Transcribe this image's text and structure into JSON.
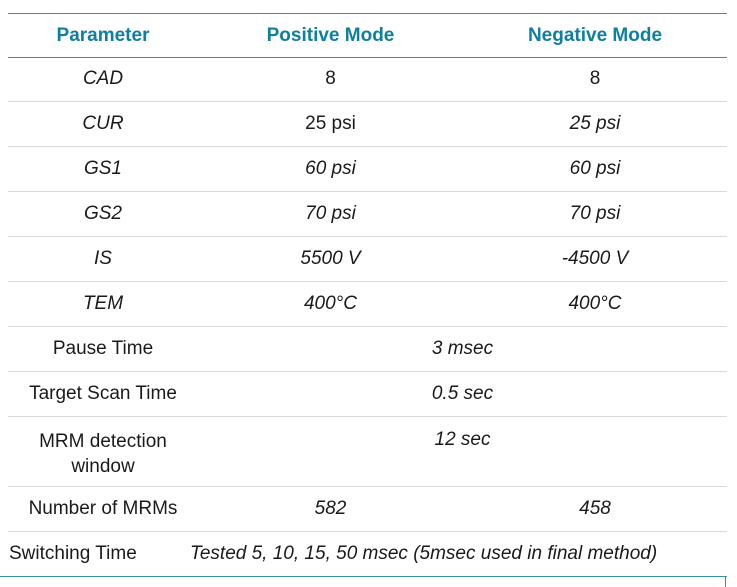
{
  "header": {
    "parameter": "Parameter",
    "positive": "Positive Mode",
    "negative": "Negative Mode"
  },
  "rows": [
    {
      "param": "CAD",
      "pos": "8",
      "neg": "8"
    },
    {
      "param": "CUR",
      "pos": "25 psi",
      "neg": "25 psi"
    },
    {
      "param": "GS1",
      "pos": "60 psi",
      "neg": "60 psi"
    },
    {
      "param": "GS2",
      "pos": "70 psi",
      "neg": "70 psi"
    },
    {
      "param": "IS",
      "pos": "5500 V",
      "neg": "-4500 V"
    },
    {
      "param": "TEM",
      "pos": "400°C",
      "neg": "400°C"
    }
  ],
  "shared_rows": [
    {
      "param": "Pause Time",
      "value": "3 msec"
    },
    {
      "param": "Target Scan Time",
      "value": "0.5 sec"
    },
    {
      "param": "MRM detection window",
      "value": "12 sec"
    }
  ],
  "mrm_row": {
    "param": "Number of MRMs",
    "pos": "582",
    "neg": "458"
  },
  "switching_row": {
    "param": "Switching Time",
    "value": "Tested 5, 10, 15, 50 msec (5msec used in final method)"
  },
  "colors": {
    "header_text": "#0f7fa0",
    "rule": "#3a8fa6",
    "divider": "#d9d9d9"
  }
}
